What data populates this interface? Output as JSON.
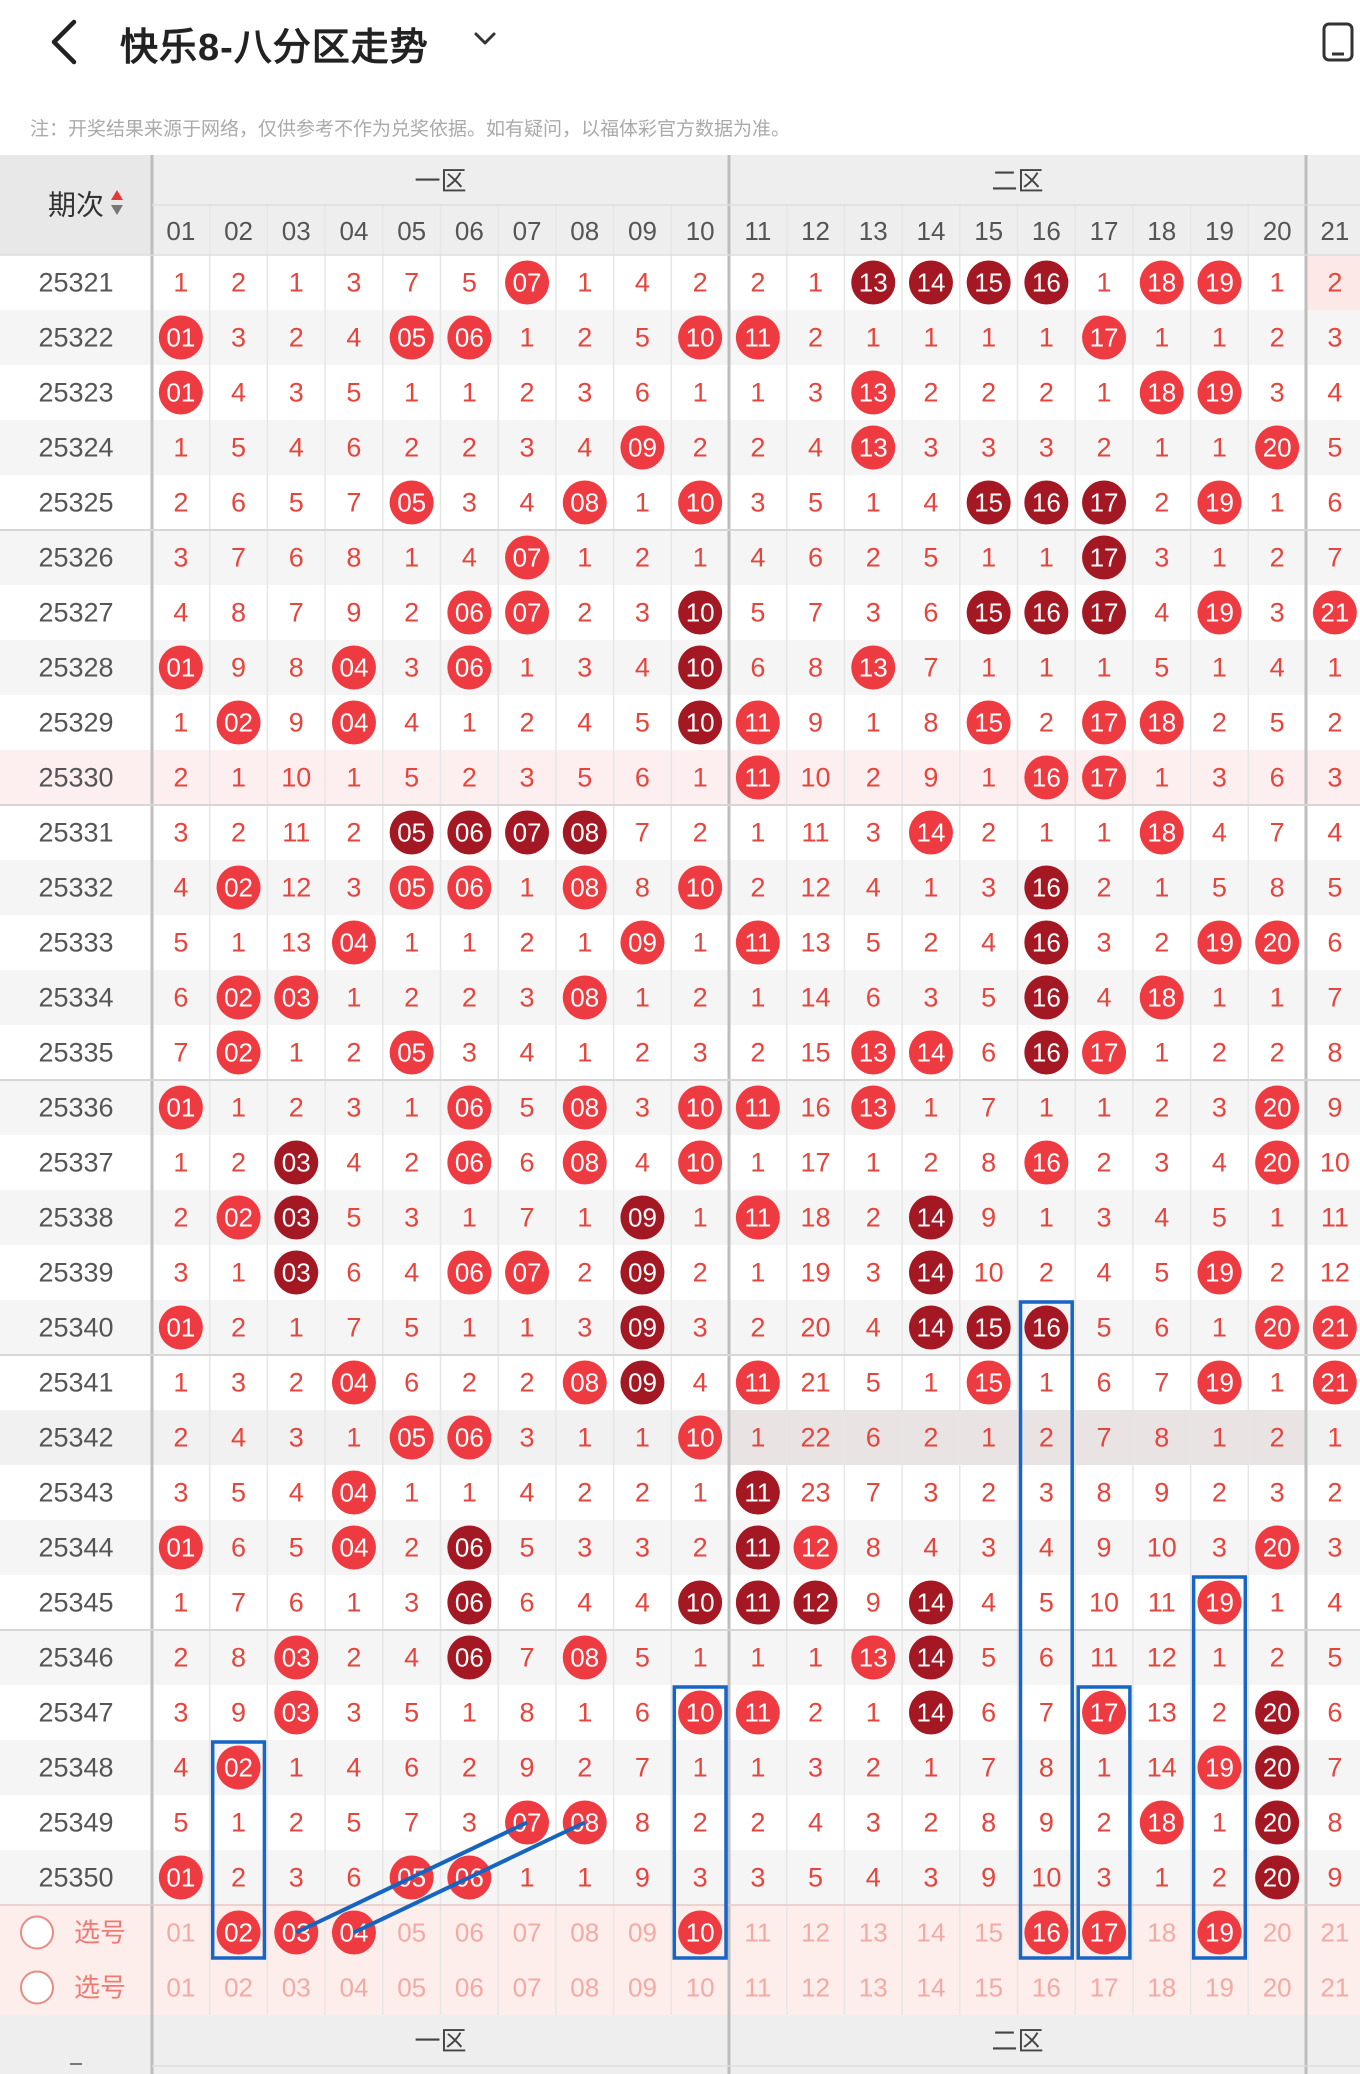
{
  "header": {
    "title": "快乐8-八分区走势"
  },
  "notice": "注：开奖结果来源于网络，仅供参考不作为兑奖依据。如有疑问，以福体彩官方数据为准。",
  "table": {
    "period_header": "期次",
    "zone1": "一区",
    "zone2": "二区",
    "columns": [
      "01",
      "02",
      "03",
      "04",
      "05",
      "06",
      "07",
      "08",
      "09",
      "10",
      "11",
      "12",
      "13",
      "14",
      "15",
      "16",
      "17",
      "18",
      "19",
      "20",
      "21"
    ],
    "rows": [
      {
        "period": "25321",
        "cells": [
          "1",
          "2",
          "1",
          "3",
          "7",
          "5",
          "h07",
          "1",
          "4",
          "2",
          "2",
          "1",
          "d13",
          "d14",
          "d15",
          "d16",
          "1",
          "h18",
          "h19",
          "1",
          "2"
        ]
      },
      {
        "period": "25322",
        "cells": [
          "h01",
          "3",
          "2",
          "4",
          "h05",
          "h06",
          "1",
          "2",
          "5",
          "h10",
          "h11",
          "2",
          "1",
          "1",
          "1",
          "1",
          "h17",
          "1",
          "1",
          "2",
          "3"
        ]
      },
      {
        "period": "25323",
        "cells": [
          "h01",
          "4",
          "3",
          "5",
          "1",
          "1",
          "2",
          "3",
          "6",
          "1",
          "1",
          "3",
          "h13",
          "2",
          "2",
          "2",
          "1",
          "h18",
          "h19",
          "3",
          "4"
        ]
      },
      {
        "period": "25324",
        "cells": [
          "1",
          "5",
          "4",
          "6",
          "2",
          "2",
          "3",
          "4",
          "h09",
          "2",
          "2",
          "4",
          "h13",
          "3",
          "3",
          "3",
          "2",
          "1",
          "1",
          "h20",
          "5"
        ]
      },
      {
        "period": "25325",
        "cells": [
          "2",
          "6",
          "5",
          "7",
          "h05",
          "3",
          "4",
          "h08",
          "1",
          "h10",
          "3",
          "5",
          "1",
          "4",
          "d15",
          "d16",
          "d17",
          "2",
          "h19",
          "1",
          "6"
        ]
      },
      {
        "period": "25326",
        "cells": [
          "3",
          "7",
          "6",
          "8",
          "1",
          "4",
          "h07",
          "1",
          "2",
          "1",
          "4",
          "6",
          "2",
          "5",
          "1",
          "1",
          "d17",
          "3",
          "1",
          "2",
          "7"
        ]
      },
      {
        "period": "25327",
        "cells": [
          "4",
          "8",
          "7",
          "9",
          "2",
          "h06",
          "h07",
          "2",
          "3",
          "d10",
          "5",
          "7",
          "3",
          "6",
          "d15",
          "d16",
          "d17",
          "4",
          "h19",
          "3",
          "h21"
        ]
      },
      {
        "period": "25328",
        "cells": [
          "h01",
          "9",
          "8",
          "h04",
          "3",
          "h06",
          "1",
          "3",
          "4",
          "d10",
          "6",
          "8",
          "h13",
          "7",
          "1",
          "1",
          "1",
          "5",
          "1",
          "4",
          "1"
        ]
      },
      {
        "period": "25329",
        "cells": [
          "1",
          "h02",
          "9",
          "h04",
          "4",
          "1",
          "2",
          "4",
          "5",
          "d10",
          "h11",
          "9",
          "1",
          "8",
          "h15",
          "2",
          "h17",
          "h18",
          "2",
          "5",
          "2"
        ]
      },
      {
        "period": "25330",
        "cells": [
          "2",
          "1",
          "10",
          "1",
          "5",
          "2",
          "3",
          "5",
          "6",
          "1",
          "h11",
          "10",
          "2",
          "9",
          "1",
          "h16",
          "h17",
          "1",
          "3",
          "6",
          "3"
        ]
      },
      {
        "period": "25331",
        "cells": [
          "3",
          "2",
          "11",
          "2",
          "d05",
          "d06",
          "d07",
          "d08",
          "7",
          "2",
          "1",
          "11",
          "3",
          "h14",
          "2",
          "1",
          "1",
          "h18",
          "4",
          "7",
          "4"
        ]
      },
      {
        "period": "25332",
        "cells": [
          "4",
          "h02",
          "12",
          "3",
          "h05",
          "h06",
          "1",
          "h08",
          "8",
          "h10",
          "2",
          "12",
          "4",
          "1",
          "3",
          "d16",
          "2",
          "1",
          "5",
          "8",
          "5"
        ]
      },
      {
        "period": "25333",
        "cells": [
          "5",
          "1",
          "13",
          "h04",
          "1",
          "1",
          "2",
          "1",
          "h09",
          "1",
          "h11",
          "13",
          "5",
          "2",
          "4",
          "d16",
          "3",
          "2",
          "h19",
          "h20",
          "6"
        ]
      },
      {
        "period": "25334",
        "cells": [
          "6",
          "h02",
          "h03",
          "1",
          "2",
          "2",
          "3",
          "h08",
          "1",
          "2",
          "1",
          "14",
          "6",
          "3",
          "5",
          "d16",
          "4",
          "h18",
          "1",
          "1",
          "7"
        ]
      },
      {
        "period": "25335",
        "cells": [
          "7",
          "h02",
          "1",
          "2",
          "h05",
          "3",
          "4",
          "1",
          "2",
          "3",
          "2",
          "15",
          "h13",
          "h14",
          "6",
          "d16",
          "h17",
          "1",
          "2",
          "2",
          "8"
        ]
      },
      {
        "period": "25336",
        "cells": [
          "h01",
          "1",
          "2",
          "3",
          "1",
          "h06",
          "5",
          "h08",
          "3",
          "h10",
          "h11",
          "16",
          "h13",
          "1",
          "7",
          "1",
          "1",
          "2",
          "3",
          "h20",
          "9"
        ]
      },
      {
        "period": "25337",
        "cells": [
          "1",
          "2",
          "d03",
          "4",
          "2",
          "h06",
          "6",
          "h08",
          "4",
          "h10",
          "1",
          "17",
          "1",
          "2",
          "8",
          "h16",
          "2",
          "3",
          "4",
          "h20",
          "10"
        ]
      },
      {
        "period": "25338",
        "cells": [
          "2",
          "h02",
          "d03",
          "5",
          "3",
          "1",
          "7",
          "1",
          "d09",
          "1",
          "h11",
          "18",
          "2",
          "d14",
          "9",
          "1",
          "3",
          "4",
          "5",
          "1",
          "11"
        ]
      },
      {
        "period": "25339",
        "cells": [
          "3",
          "1",
          "d03",
          "6",
          "4",
          "h06",
          "h07",
          "2",
          "d09",
          "2",
          "1",
          "19",
          "3",
          "d14",
          "10",
          "2",
          "4",
          "5",
          "h19",
          "2",
          "12"
        ]
      },
      {
        "period": "25340",
        "cells": [
          "h01",
          "2",
          "1",
          "7",
          "5",
          "1",
          "1",
          "3",
          "d09",
          "3",
          "2",
          "20",
          "4",
          "d14",
          "d15",
          "d16",
          "5",
          "6",
          "1",
          "h20",
          "h21"
        ]
      },
      {
        "period": "25341",
        "cells": [
          "1",
          "3",
          "2",
          "h04",
          "6",
          "2",
          "2",
          "h08",
          "d09",
          "4",
          "h11",
          "21",
          "5",
          "1",
          "h15",
          "1",
          "6",
          "7",
          "h19",
          "1",
          "h21"
        ]
      },
      {
        "period": "25342",
        "cells": [
          "2",
          "4",
          "3",
          "1",
          "h05",
          "h06",
          "3",
          "1",
          "1",
          "h10",
          "1",
          "22",
          "6",
          "2",
          "1",
          "2",
          "7",
          "8",
          "1",
          "2",
          "1"
        ]
      },
      {
        "period": "25343",
        "cells": [
          "3",
          "5",
          "4",
          "h04",
          "1",
          "1",
          "4",
          "2",
          "2",
          "1",
          "d11",
          "23",
          "7",
          "3",
          "2",
          "3",
          "8",
          "9",
          "2",
          "3",
          "2"
        ]
      },
      {
        "period": "25344",
        "cells": [
          "h01",
          "6",
          "5",
          "h04",
          "2",
          "d06",
          "5",
          "3",
          "3",
          "2",
          "d11",
          "h12",
          "8",
          "4",
          "3",
          "4",
          "9",
          "10",
          "3",
          "h20",
          "3"
        ]
      },
      {
        "period": "25345",
        "cells": [
          "1",
          "7",
          "6",
          "1",
          "3",
          "d06",
          "6",
          "4",
          "4",
          "d10",
          "d11",
          "d12",
          "9",
          "d14",
          "4",
          "5",
          "10",
          "11",
          "h19",
          "1",
          "4"
        ]
      },
      {
        "period": "25346",
        "cells": [
          "2",
          "8",
          "h03",
          "2",
          "4",
          "d06",
          "7",
          "h08",
          "5",
          "1",
          "1",
          "1",
          "h13",
          "d14",
          "5",
          "6",
          "11",
          "12",
          "1",
          "2",
          "5"
        ]
      },
      {
        "period": "25347",
        "cells": [
          "3",
          "9",
          "h03",
          "3",
          "5",
          "1",
          "8",
          "1",
          "6",
          "h10",
          "h11",
          "2",
          "1",
          "d14",
          "6",
          "7",
          "h17",
          "13",
          "2",
          "d20",
          "6"
        ]
      },
      {
        "period": "25348",
        "cells": [
          "4",
          "h02",
          "1",
          "4",
          "6",
          "2",
          "9",
          "2",
          "7",
          "1",
          "1",
          "3",
          "2",
          "1",
          "7",
          "8",
          "1",
          "14",
          "h19",
          "d20",
          "7"
        ]
      },
      {
        "period": "25349",
        "cells": [
          "5",
          "1",
          "2",
          "5",
          "7",
          "3",
          "h07",
          "h08",
          "8",
          "2",
          "2",
          "4",
          "3",
          "2",
          "8",
          "9",
          "2",
          "h18",
          "1",
          "d20",
          "8"
        ]
      },
      {
        "period": "25350",
        "cells": [
          "h01",
          "2",
          "3",
          "6",
          "h05",
          "h06",
          "1",
          "1",
          "9",
          "3",
          "3",
          "5",
          "4",
          "3",
          "9",
          "10",
          "3",
          "1",
          "2",
          "d20",
          "9"
        ]
      }
    ],
    "select_rows": [
      {
        "label": "选号",
        "selected": [
          "02",
          "03",
          "04",
          "10",
          "16",
          "17",
          "19"
        ]
      },
      {
        "label": "选号",
        "selected": []
      }
    ]
  },
  "colors": {
    "hot": "#ee3b41",
    "dark": "#a31823",
    "miss": "#e5453c",
    "box": "#1765c4",
    "line": "#1565c0"
  }
}
